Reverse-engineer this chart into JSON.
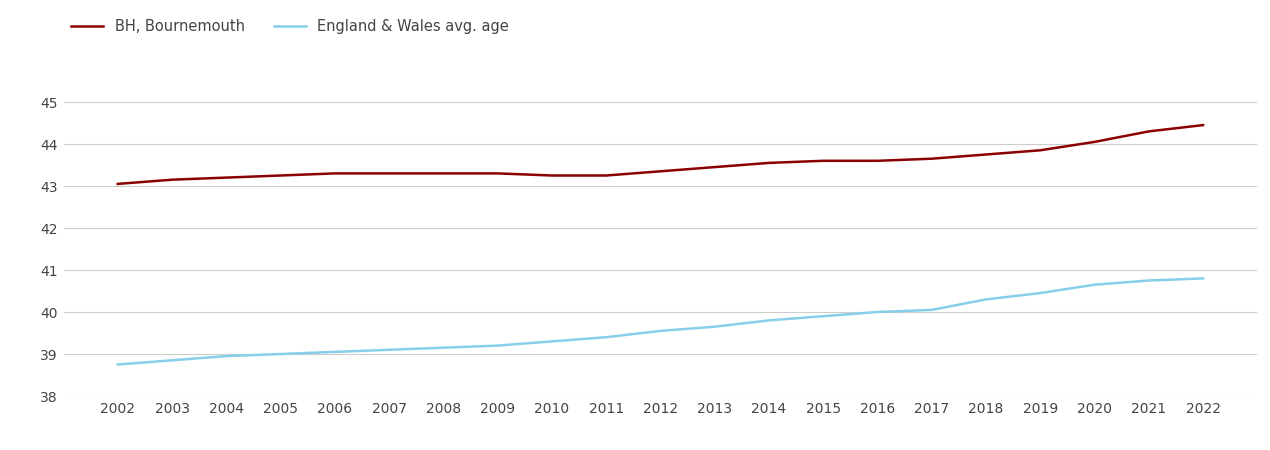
{
  "years": [
    2002,
    2003,
    2004,
    2005,
    2006,
    2007,
    2008,
    2009,
    2010,
    2011,
    2012,
    2013,
    2014,
    2015,
    2016,
    2017,
    2018,
    2019,
    2020,
    2021,
    2022
  ],
  "bournemouth": [
    43.05,
    43.15,
    43.2,
    43.25,
    43.3,
    43.3,
    43.3,
    43.3,
    43.25,
    43.25,
    43.35,
    43.45,
    43.55,
    43.6,
    43.6,
    43.65,
    43.75,
    43.85,
    44.05,
    44.3,
    44.45
  ],
  "england_wales": [
    38.75,
    38.85,
    38.95,
    39.0,
    39.05,
    39.1,
    39.15,
    39.2,
    39.3,
    39.4,
    39.55,
    39.65,
    39.8,
    39.9,
    40.0,
    40.05,
    40.3,
    40.45,
    40.65,
    40.75,
    40.8
  ],
  "bournemouth_color": "#8B0000",
  "england_wales_color": "#87CEEB",
  "bournemouth_label": "BH, Bournemouth",
  "england_wales_label": "England & Wales avg. age",
  "ylim": [
    38,
    45.5
  ],
  "yticks": [
    38,
    39,
    40,
    41,
    42,
    43,
    44,
    45
  ],
  "background_color": "#ffffff",
  "grid_color": "#cccccc",
  "line_width": 1.8,
  "tick_label_color": "#444444",
  "legend_fontsize": 10.5,
  "axis_tick_fontsize": 10
}
